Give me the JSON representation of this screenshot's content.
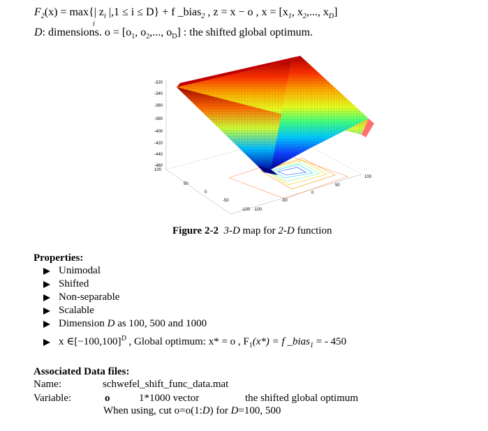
{
  "formula": {
    "line1_prefix": "F",
    "line1_sub": "2",
    "line1_rest_a": "(x) = max{| z",
    "line1_sub_i": "i",
    "line1_rest_b": " |,1 ≤ i ≤ D} + f _bias",
    "line1_sub_2": "2",
    "line1_rest_c": " ,  z = x − o ,  x = [x",
    "line1_sub_1": "1",
    "line1_rest_d": ", x",
    "line1_sub_b": "2",
    "line1_rest_e": ",..., x",
    "line1_sub_D": "D",
    "line1_rest_f": "]",
    "max_sub": "i",
    "line2_a": "D",
    "line2_b": ": dimensions.   o = [o",
    "line2_sub1": "1",
    "line2_c": ", o",
    "line2_sub2": "2",
    "line2_d": ",..., o",
    "line2_subD": "D",
    "line2_e": "] : the shifted global optimum."
  },
  "figure": {
    "caption_bold": "Figure 2-2",
    "caption_italic1": "3-D",
    "caption_mid": " map for ",
    "caption_italic2": "2-D",
    "caption_end": " function",
    "z_ticks": [
      "-320",
      "-340",
      "-360",
      "-380",
      "-400",
      "-420",
      "-440",
      "-460",
      "100"
    ],
    "x_ticks_left": [
      "50",
      "0",
      "-50",
      "-100"
    ],
    "x_ticks_right": [
      "-100",
      "-50",
      "0",
      "50",
      "100"
    ]
  },
  "properties": {
    "heading": "Properties:",
    "items": [
      "Unimodal",
      "Shifted",
      "Non-separable",
      "Scalable"
    ],
    "dimension_a": "Dimension ",
    "dimension_b": "D",
    "dimension_c": " as 100, 500 and 1000",
    "domain_a": "x ∈[−100,100]",
    "domain_sup": "D",
    "domain_b": " , Global optimum:  x* = o ,  F",
    "domain_sub": "1",
    "domain_c": "(x*) = f _bias",
    "domain_sub2": "1",
    "domain_d": " = - 450"
  },
  "data_files": {
    "heading": "Associated Data files:",
    "name_label": "Name:",
    "name_value": "schwefel_shift_func_data.mat",
    "variable_label": "Variable:",
    "variable_name": "o",
    "variable_size": "1*1000 vector",
    "variable_desc": "the shifted global optimum",
    "usage_a": "When using, cut o=o(1:",
    "usage_b": "D",
    "usage_c": ") for ",
    "usage_d": "D",
    "usage_e": "=100, 500"
  }
}
